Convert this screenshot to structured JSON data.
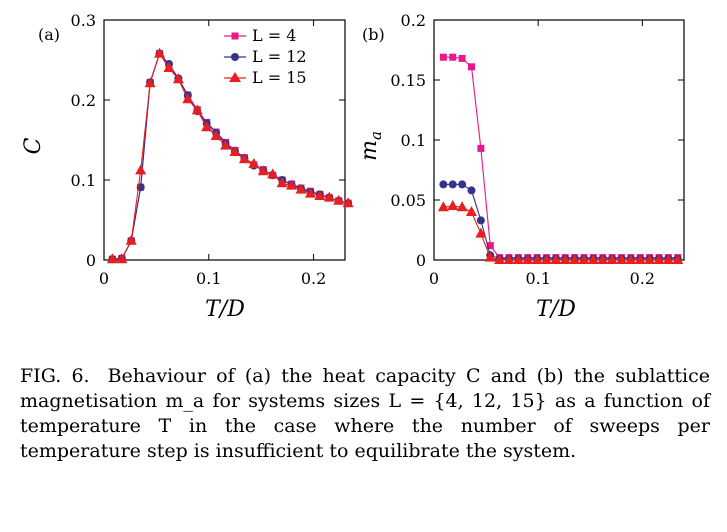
{
  "chart_data": [
    {
      "type": "line",
      "panel_label": "(a)",
      "xlabel": "T/D",
      "ylabel": "C",
      "xlim": [
        0,
        0.23
      ],
      "ylim": [
        0,
        0.3
      ],
      "x_ticks": [
        0,
        0.1,
        0.2
      ],
      "x_tick_labels": [
        "0",
        "0.1",
        "0.2"
      ],
      "y_ticks": [
        0,
        0.1,
        0.2,
        0.3
      ],
      "y_tick_labels": [
        "0",
        "0.1",
        "0.2",
        "0.3"
      ],
      "x": [
        0.008,
        0.017,
        0.026,
        0.035,
        0.044,
        0.053,
        0.062,
        0.071,
        0.08,
        0.089,
        0.098,
        0.107,
        0.116,
        0.125,
        0.134,
        0.143,
        0.152,
        0.161,
        0.17,
        0.179,
        0.188,
        0.197,
        0.206,
        0.215,
        0.224,
        0.233
      ],
      "series": [
        {
          "name": "L = 4",
          "color": "#e8178a",
          "marker": "square",
          "values": [
            0.001,
            0.002,
            0.024,
            0.091,
            0.222,
            0.258,
            0.243,
            0.226,
            0.206,
            0.188,
            0.172,
            0.16,
            0.147,
            0.137,
            0.128,
            0.119,
            0.113,
            0.106,
            0.1,
            0.095,
            0.09,
            0.086,
            0.082,
            0.078,
            0.074,
            0.071
          ]
        },
        {
          "name": "L = 12",
          "color": "#34348e",
          "marker": "circle",
          "values": [
            0.001,
            0.002,
            0.024,
            0.091,
            0.222,
            0.258,
            0.245,
            0.227,
            0.206,
            0.186,
            0.171,
            0.159,
            0.146,
            0.136,
            0.127,
            0.118,
            0.112,
            0.106,
            0.1,
            0.094,
            0.089,
            0.085,
            0.082,
            0.078,
            0.074,
            0.071
          ]
        },
        {
          "name": "L = 15",
          "color": "#e62020",
          "marker": "triangle",
          "values": [
            0.001,
            0.001,
            0.024,
            0.112,
            0.221,
            0.258,
            0.24,
            0.226,
            0.201,
            0.187,
            0.166,
            0.155,
            0.143,
            0.135,
            0.126,
            0.12,
            0.111,
            0.107,
            0.096,
            0.093,
            0.088,
            0.083,
            0.08,
            0.078,
            0.074,
            0.071
          ]
        }
      ],
      "legend": "top-right"
    },
    {
      "type": "line",
      "panel_label": "(b)",
      "xlabel": "T/D",
      "ylabel": "m_a",
      "xlim": [
        0,
        0.24
      ],
      "ylim": [
        0,
        0.2
      ],
      "x_ticks": [
        0,
        0.1,
        0.2
      ],
      "x_tick_labels": [
        "0",
        "0.1",
        "0.2"
      ],
      "y_ticks": [
        0,
        0.05,
        0.1,
        0.15,
        0.2
      ],
      "y_tick_labels": [
        "0",
        "0.05",
        "0.1",
        "0.15",
        "0.2"
      ],
      "x": [
        0.009,
        0.018,
        0.027,
        0.036,
        0.045,
        0.054,
        0.063,
        0.072,
        0.081,
        0.09,
        0.099,
        0.108,
        0.117,
        0.126,
        0.135,
        0.144,
        0.153,
        0.162,
        0.171,
        0.18,
        0.189,
        0.198,
        0.207,
        0.216,
        0.225,
        0.234
      ],
      "series": [
        {
          "name": "L = 4",
          "color": "#e8178a",
          "marker": "square",
          "values": [
            0.169,
            0.169,
            0.168,
            0.161,
            0.093,
            0.012,
            0.002,
            0.002,
            0.002,
            0.002,
            0.002,
            0.002,
            0.002,
            0.002,
            0.002,
            0.002,
            0.002,
            0.002,
            0.002,
            0.002,
            0.002,
            0.002,
            0.002,
            0.002,
            0.002,
            0.002
          ]
        },
        {
          "name": "L = 12",
          "color": "#34348e",
          "marker": "circle",
          "values": [
            0.063,
            0.063,
            0.063,
            0.058,
            0.033,
            0.004,
            0.001,
            0.001,
            0.001,
            0.001,
            0.001,
            0.001,
            0.001,
            0.001,
            0.001,
            0.001,
            0.001,
            0.001,
            0.001,
            0.001,
            0.001,
            0.001,
            0.001,
            0.001,
            0.001,
            0.001
          ]
        },
        {
          "name": "L = 15",
          "color": "#e62020",
          "marker": "triangle",
          "values": [
            0.044,
            0.045,
            0.044,
            0.04,
            0.022,
            0.002,
            0.0,
            0.0,
            0.0,
            0.0,
            0.0,
            0.0,
            0.0,
            0.0,
            0.0,
            0.0,
            0.0,
            0.0,
            0.0,
            0.0,
            0.0,
            0.0,
            0.0,
            0.0,
            0.0,
            0.0
          ]
        }
      ]
    }
  ],
  "legend_labels": [
    "L = 4",
    "L = 12",
    "L = 15"
  ],
  "caption": {
    "label": "FIG. 6.",
    "text": "Behaviour of (a) the heat capacity C and (b) the sublattice magnetisation m_a for systems sizes L = {4, 12, 15} as a function of temperature T in the case where the number of sweeps per temperature step is insufficient to equilibrate the system."
  }
}
